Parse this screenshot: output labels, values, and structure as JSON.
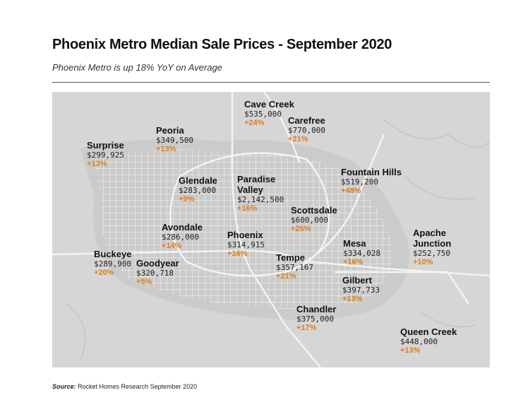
{
  "header": {
    "title": "Phoenix Metro Median Sale Prices - September 2020",
    "subtitle": "Phoenix Metro is up 18% YoY on Average"
  },
  "cities": [
    {
      "name": "Cave Creek",
      "price": "$535,000",
      "change": "+24%"
    },
    {
      "name": "Carefree",
      "price": "$770,000",
      "change": "+21%"
    },
    {
      "name": "Peoria",
      "price": "$349,500",
      "change": "+13%"
    },
    {
      "name": "Surprise",
      "price": "$299,925",
      "change": "+13%"
    },
    {
      "name": "Glendale",
      "price": "$283,000",
      "change": "+9%"
    },
    {
      "name": "Paradise Valley",
      "price": "$2,142,500",
      "change": "+16%"
    },
    {
      "name": "Fountain Hills",
      "price": "$519,200",
      "change": "+48%"
    },
    {
      "name": "Scottsdale",
      "price": "$600,000",
      "change": "+25%"
    },
    {
      "name": "Avondale",
      "price": "$286,000",
      "change": "+14%"
    },
    {
      "name": "Phoenix",
      "price": "$314,915",
      "change": "+16%"
    },
    {
      "name": "Apache Junction",
      "price": "$252,750",
      "change": "+10%"
    },
    {
      "name": "Mesa",
      "price": "$334,028",
      "change": "+16%"
    },
    {
      "name": "Buckeye",
      "price": "$289,900",
      "change": "+20%"
    },
    {
      "name": "Goodyear",
      "price": "$320,718",
      "change": "+5%"
    },
    {
      "name": "Tempe",
      "price": "$357,167",
      "change": "+21%"
    },
    {
      "name": "Gilbert",
      "price": "$397,733",
      "change": "+13%"
    },
    {
      "name": "Chandler",
      "price": "$375,000",
      "change": "+17%"
    },
    {
      "name": "Queen Creek",
      "price": "$448,000",
      "change": "+13%"
    }
  ],
  "source": {
    "label": "Source:",
    "text": "Rocket Homes Research September 2020"
  }
}
